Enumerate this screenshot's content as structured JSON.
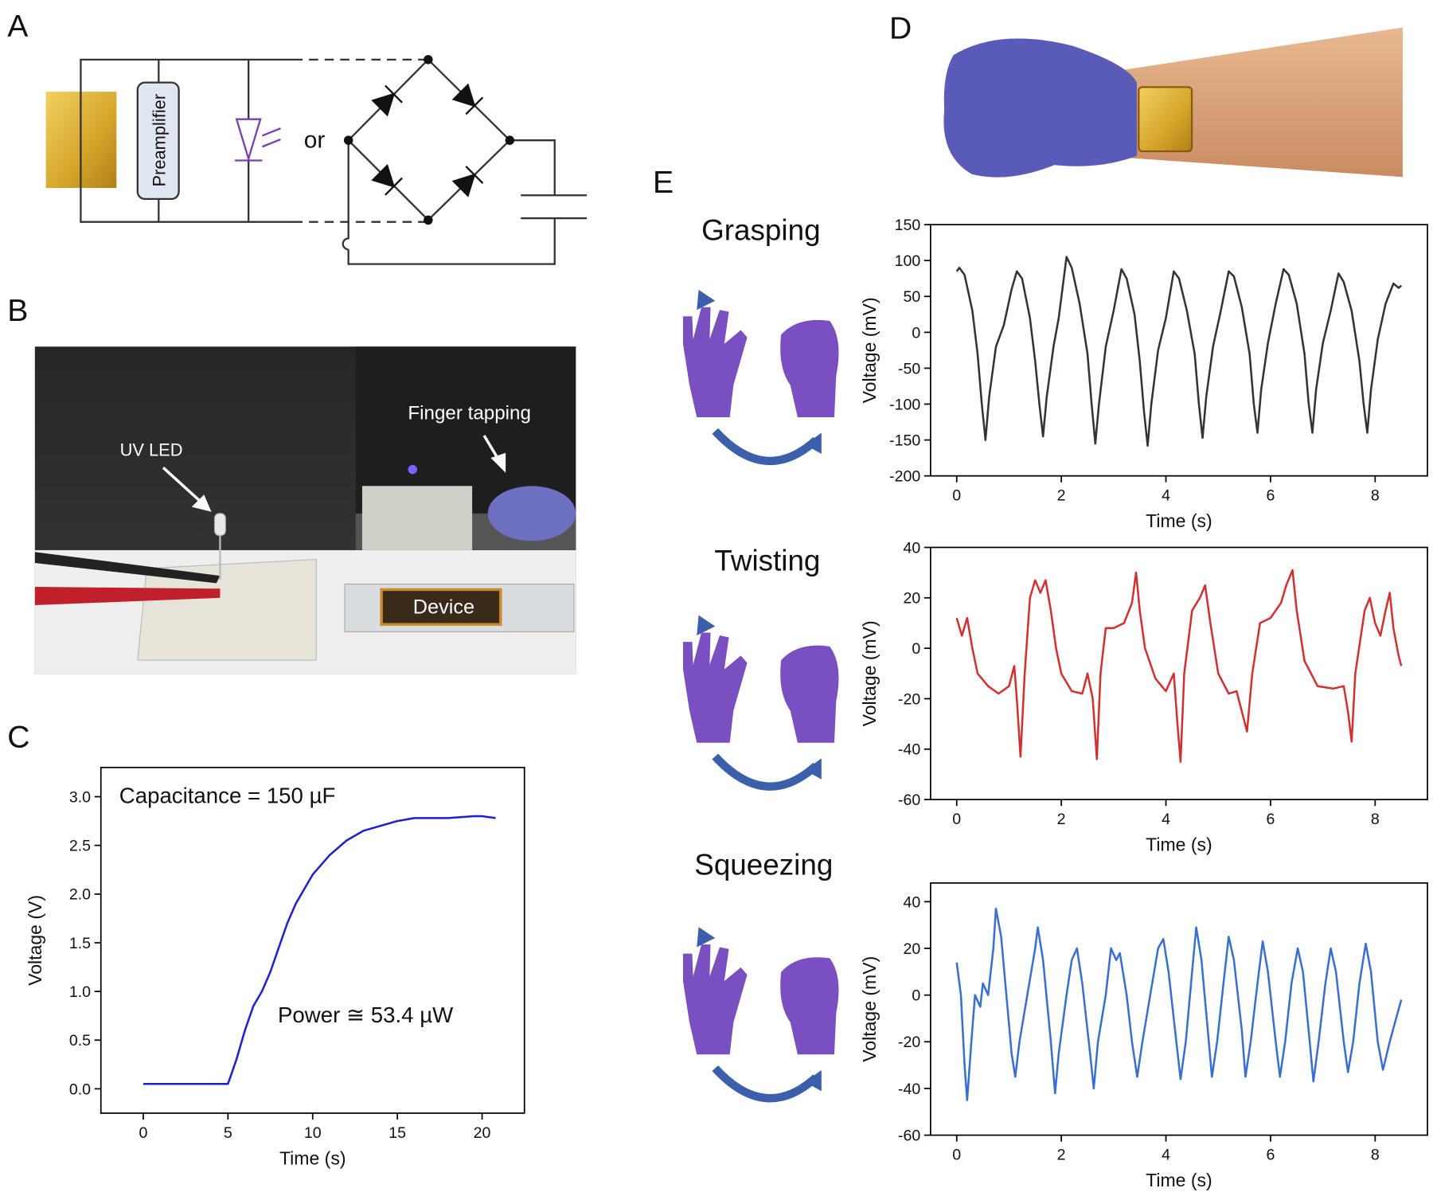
{
  "panels": [
    "A",
    "B",
    "C",
    "D",
    "E"
  ],
  "circuit": {
    "amplifier": "Preamplifier",
    "or": "or"
  },
  "photo_b": {
    "led": "UV LED",
    "tapping": "Finger tapping",
    "device": "Device"
  },
  "gestures": [
    "Grasping",
    "Twisting",
    "Squeezing"
  ],
  "chart_data": [
    {
      "type": "line",
      "x_label": "Time (s)",
      "y_label": "Voltage (V)",
      "color": "#1f1fd0",
      "annotations": [
        "Capacitance = 150 µF",
        "Power ≅ 53.4 µW"
      ],
      "xlim": [
        -2.5,
        22.5
      ],
      "xticks": [
        0,
        5,
        10,
        15,
        20
      ],
      "ylim": [
        -0.25,
        3.3
      ],
      "yticks": [
        {
          "value": 0,
          "label": "0.0"
        },
        0.5,
        {
          "value": 1,
          "label": "1.0"
        },
        1.5,
        {
          "value": 2,
          "label": "2.0"
        },
        2.5,
        {
          "value": 3,
          "label": "3.0"
        }
      ],
      "x": [
        0,
        2,
        5,
        5.2,
        5.5,
        6,
        6.5,
        7,
        7.5,
        8,
        8.5,
        9,
        9.5,
        10,
        11,
        12,
        13,
        14,
        15,
        16,
        18,
        19.5,
        20,
        20.8
      ],
      "values": [
        0.05,
        0.05,
        0.05,
        0.15,
        0.3,
        0.6,
        0.85,
        1.0,
        1.2,
        1.45,
        1.7,
        1.9,
        2.05,
        2.2,
        2.4,
        2.55,
        2.65,
        2.7,
        2.75,
        2.78,
        2.78,
        2.8,
        2.8,
        2.78
      ]
    },
    {
      "type": "line",
      "x_label": "Time (s)",
      "y_label": "Voltage (mV)",
      "color": "#333333",
      "xlim": [
        -0.5,
        9
      ],
      "xticks": [
        0,
        2,
        4,
        6,
        8
      ],
      "ylim": [
        -200,
        150
      ],
      "yticks": [
        -200,
        -150,
        -100,
        -50,
        0,
        50,
        100,
        150
      ],
      "x": [
        0,
        0.05,
        0.15,
        0.3,
        0.4,
        0.48,
        0.55,
        0.62,
        0.75,
        0.9,
        1.05,
        1.15,
        1.25,
        1.4,
        1.5,
        1.58,
        1.65,
        1.72,
        1.85,
        1.95,
        2.1,
        2.2,
        2.35,
        2.5,
        2.58,
        2.65,
        2.72,
        2.85,
        3.0,
        3.15,
        3.25,
        3.4,
        3.5,
        3.58,
        3.65,
        3.72,
        3.85,
        4.0,
        4.15,
        4.25,
        4.4,
        4.55,
        4.63,
        4.7,
        4.77,
        4.9,
        5.05,
        5.2,
        5.3,
        5.45,
        5.6,
        5.68,
        5.75,
        5.82,
        5.95,
        6.1,
        6.25,
        6.35,
        6.5,
        6.65,
        6.73,
        6.8,
        6.87,
        7.0,
        7.15,
        7.3,
        7.4,
        7.55,
        7.7,
        7.78,
        7.85,
        7.92,
        8.05,
        8.2,
        8.35,
        8.45,
        8.5
      ],
      "values": [
        85,
        90,
        80,
        30,
        -30,
        -100,
        -150,
        -90,
        -20,
        10,
        60,
        85,
        75,
        20,
        -40,
        -100,
        -145,
        -90,
        -20,
        20,
        105,
        90,
        40,
        -30,
        -100,
        -155,
        -100,
        -20,
        30,
        88,
        75,
        25,
        -40,
        -110,
        -158,
        -100,
        -25,
        20,
        85,
        75,
        30,
        -30,
        -100,
        -147,
        -90,
        -20,
        30,
        85,
        78,
        35,
        -30,
        -100,
        -140,
        -80,
        -15,
        40,
        88,
        80,
        40,
        -30,
        -100,
        -140,
        -80,
        -15,
        30,
        82,
        70,
        30,
        -40,
        -100,
        -140,
        -80,
        -10,
        40,
        68,
        62,
        65
      ]
    },
    {
      "type": "line",
      "x_label": "Time (s)",
      "y_label": "Voltage (mV)",
      "color": "#d03232",
      "xlim": [
        -0.5,
        9
      ],
      "xticks": [
        0,
        2,
        4,
        6,
        8
      ],
      "ylim": [
        -60,
        40
      ],
      "yticks": [
        -60,
        -40,
        -20,
        0,
        20,
        40
      ],
      "x": [
        0,
        0.1,
        0.2,
        0.3,
        0.4,
        0.6,
        0.8,
        1.0,
        1.1,
        1.15,
        1.22,
        1.3,
        1.4,
        1.5,
        1.6,
        1.7,
        1.8,
        1.9,
        2.0,
        2.2,
        2.4,
        2.5,
        2.6,
        2.68,
        2.75,
        2.85,
        3.0,
        3.2,
        3.35,
        3.43,
        3.5,
        3.6,
        3.8,
        4.0,
        4.15,
        4.22,
        4.28,
        4.35,
        4.5,
        4.65,
        4.75,
        4.85,
        5.0,
        5.2,
        5.35,
        5.45,
        5.55,
        5.65,
        5.8,
        6.0,
        6.2,
        6.3,
        6.42,
        6.5,
        6.65,
        6.9,
        7.2,
        7.4,
        7.48,
        7.55,
        7.62,
        7.8,
        7.9,
        8.0,
        8.1,
        8.2,
        8.28,
        8.35,
        8.45,
        8.5
      ],
      "values": [
        12,
        5,
        12,
        0,
        -10,
        -15,
        -18,
        -15,
        -7,
        -20,
        -43,
        -10,
        20,
        27,
        22,
        27,
        15,
        0,
        -10,
        -17,
        -18,
        -10,
        -20,
        -44,
        -10,
        8,
        8,
        10,
        18,
        30,
        15,
        0,
        -12,
        -17,
        -10,
        -30,
        -45,
        -10,
        15,
        20,
        25,
        10,
        -10,
        -18,
        -17,
        -25,
        -33,
        -10,
        10,
        12,
        18,
        25,
        31,
        15,
        -5,
        -15,
        -16,
        -15,
        -25,
        -37,
        -10,
        15,
        20,
        10,
        5,
        15,
        22,
        8,
        -3,
        -7
      ]
    },
    {
      "type": "line",
      "x_label": "Time (s)",
      "y_label": "Voltage (mV)",
      "color": "#3a6fd0",
      "xlim": [
        -0.5,
        9
      ],
      "xticks": [
        0,
        2,
        4,
        6,
        8
      ],
      "ylim": [
        -60,
        48
      ],
      "yticks": [
        -60,
        -40,
        -20,
        0,
        20,
        40
      ],
      "x": [
        0,
        0.08,
        0.15,
        0.2,
        0.28,
        0.35,
        0.45,
        0.5,
        0.6,
        0.7,
        0.75,
        0.85,
        0.95,
        1.05,
        1.12,
        1.2,
        1.35,
        1.5,
        1.55,
        1.65,
        1.8,
        1.88,
        1.95,
        2.1,
        2.2,
        2.3,
        2.4,
        2.55,
        2.62,
        2.7,
        2.85,
        2.95,
        3.05,
        3.12,
        3.25,
        3.35,
        3.45,
        3.55,
        3.7,
        3.85,
        3.95,
        4.05,
        4.2,
        4.28,
        4.38,
        4.5,
        4.58,
        4.68,
        4.8,
        4.88,
        4.98,
        5.1,
        5.2,
        5.3,
        5.45,
        5.52,
        5.62,
        5.75,
        5.85,
        5.95,
        6.1,
        6.18,
        6.28,
        6.4,
        6.52,
        6.62,
        6.75,
        6.82,
        6.92,
        7.05,
        7.15,
        7.25,
        7.4,
        7.48,
        7.58,
        7.7,
        7.82,
        7.92,
        8.05,
        8.15,
        8.28,
        8.4,
        8.5
      ],
      "values": [
        14,
        0,
        -30,
        -45,
        -20,
        0,
        -5,
        5,
        0,
        20,
        37,
        25,
        0,
        -25,
        -35,
        -20,
        0,
        20,
        29,
        15,
        -20,
        -42,
        -25,
        0,
        15,
        20,
        5,
        -25,
        -40,
        -20,
        0,
        20,
        15,
        18,
        0,
        -20,
        -35,
        -20,
        0,
        20,
        24,
        10,
        -20,
        -36,
        -20,
        10,
        29,
        15,
        -15,
        -35,
        -20,
        5,
        25,
        15,
        -15,
        -35,
        -20,
        5,
        23,
        10,
        -20,
        -35,
        -20,
        5,
        20,
        10,
        -20,
        -37,
        -20,
        5,
        20,
        10,
        -20,
        -33,
        -20,
        5,
        22,
        10,
        -20,
        -32,
        -20,
        -10,
        -2
      ]
    }
  ]
}
